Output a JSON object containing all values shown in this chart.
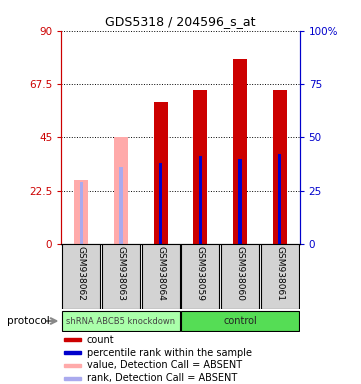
{
  "title": "GDS5318 / 204596_s_at",
  "samples": [
    "GSM938062",
    "GSM938063",
    "GSM938064",
    "GSM938059",
    "GSM938060",
    "GSM938061"
  ],
  "count_values": [
    27,
    45,
    60,
    65,
    78,
    65
  ],
  "count_absent": [
    true,
    true,
    false,
    false,
    false,
    false
  ],
  "percentile_values": [
    29,
    36,
    38,
    41,
    40,
    42
  ],
  "percentile_absent": [
    true,
    true,
    false,
    false,
    false,
    false
  ],
  "ylim_left": [
    0,
    90
  ],
  "ylim_right": [
    0,
    100
  ],
  "yticks_left": [
    0,
    22.5,
    45,
    67.5,
    90
  ],
  "yticks_right": [
    0,
    25,
    50,
    75,
    100
  ],
  "ytick_labels_left": [
    "0",
    "22.5",
    "45",
    "67.5",
    "90"
  ],
  "ytick_labels_right": [
    "0",
    "25",
    "50",
    "75",
    "100%"
  ],
  "color_count": "#cc0000",
  "color_count_absent": "#ffaaaa",
  "color_percentile": "#0000cc",
  "color_percentile_absent": "#aaaaee",
  "bar_width": 0.35,
  "percentile_bar_width": 0.08,
  "background_color": "#ffffff",
  "axis_background": "#ffffff",
  "shRNA_color": "#aaffaa",
  "control_color": "#55dd55",
  "legend_items": [
    {
      "color": "#cc0000",
      "label": "count"
    },
    {
      "color": "#0000cc",
      "label": "percentile rank within the sample"
    },
    {
      "color": "#ffaaaa",
      "label": "value, Detection Call = ABSENT"
    },
    {
      "color": "#aaaaee",
      "label": "rank, Detection Call = ABSENT"
    }
  ]
}
